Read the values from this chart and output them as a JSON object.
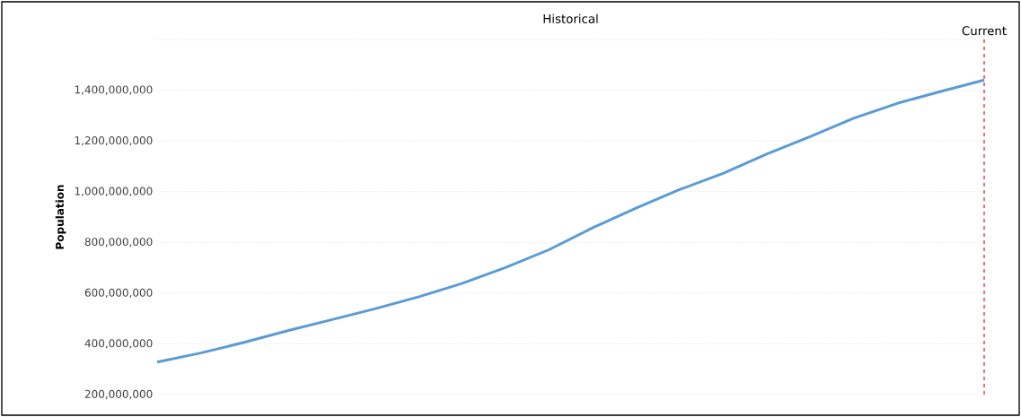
{
  "chart_data": {
    "type": "line",
    "title": "Historical",
    "ylabel": "Population",
    "categories": [
      null,
      null,
      null,
      null,
      null,
      null,
      null,
      null,
      null,
      null,
      null,
      null,
      null,
      null,
      null,
      null,
      null,
      null,
      null,
      null
    ],
    "series": [
      {
        "color": "#5b9bd5",
        "values": [
          328000000,
          364000000,
          406000000,
          452000000,
          495000000,
          538000000,
          585000000,
          638000000,
          701000000,
          771000000,
          857000000,
          935000000,
          1008000000,
          1072000000,
          1148000000,
          1217000000,
          1289000000,
          1348000000,
          1395000000,
          1440000000
        ]
      }
    ],
    "ylim": [
      200000000,
      1600000000
    ],
    "yticks": [
      {
        "value": 200000000,
        "label": "200,000,000"
      },
      {
        "value": 400000000,
        "label": "400,000,000"
      },
      {
        "value": 600000000,
        "label": "600,000,000"
      },
      {
        "value": 800000000,
        "label": "800,000,000"
      },
      {
        "value": 1000000000,
        "label": "1,000,000,000"
      },
      {
        "value": 1200000000,
        "label": "1,200,000,000"
      },
      {
        "value": 1400000000,
        "label": "1,400,000,000"
      },
      {
        "value": 1600000000,
        "label": null
      }
    ],
    "annotations": [
      "Current"
    ],
    "grid": "y",
    "marker": "none",
    "line_style": "solid"
  }
}
